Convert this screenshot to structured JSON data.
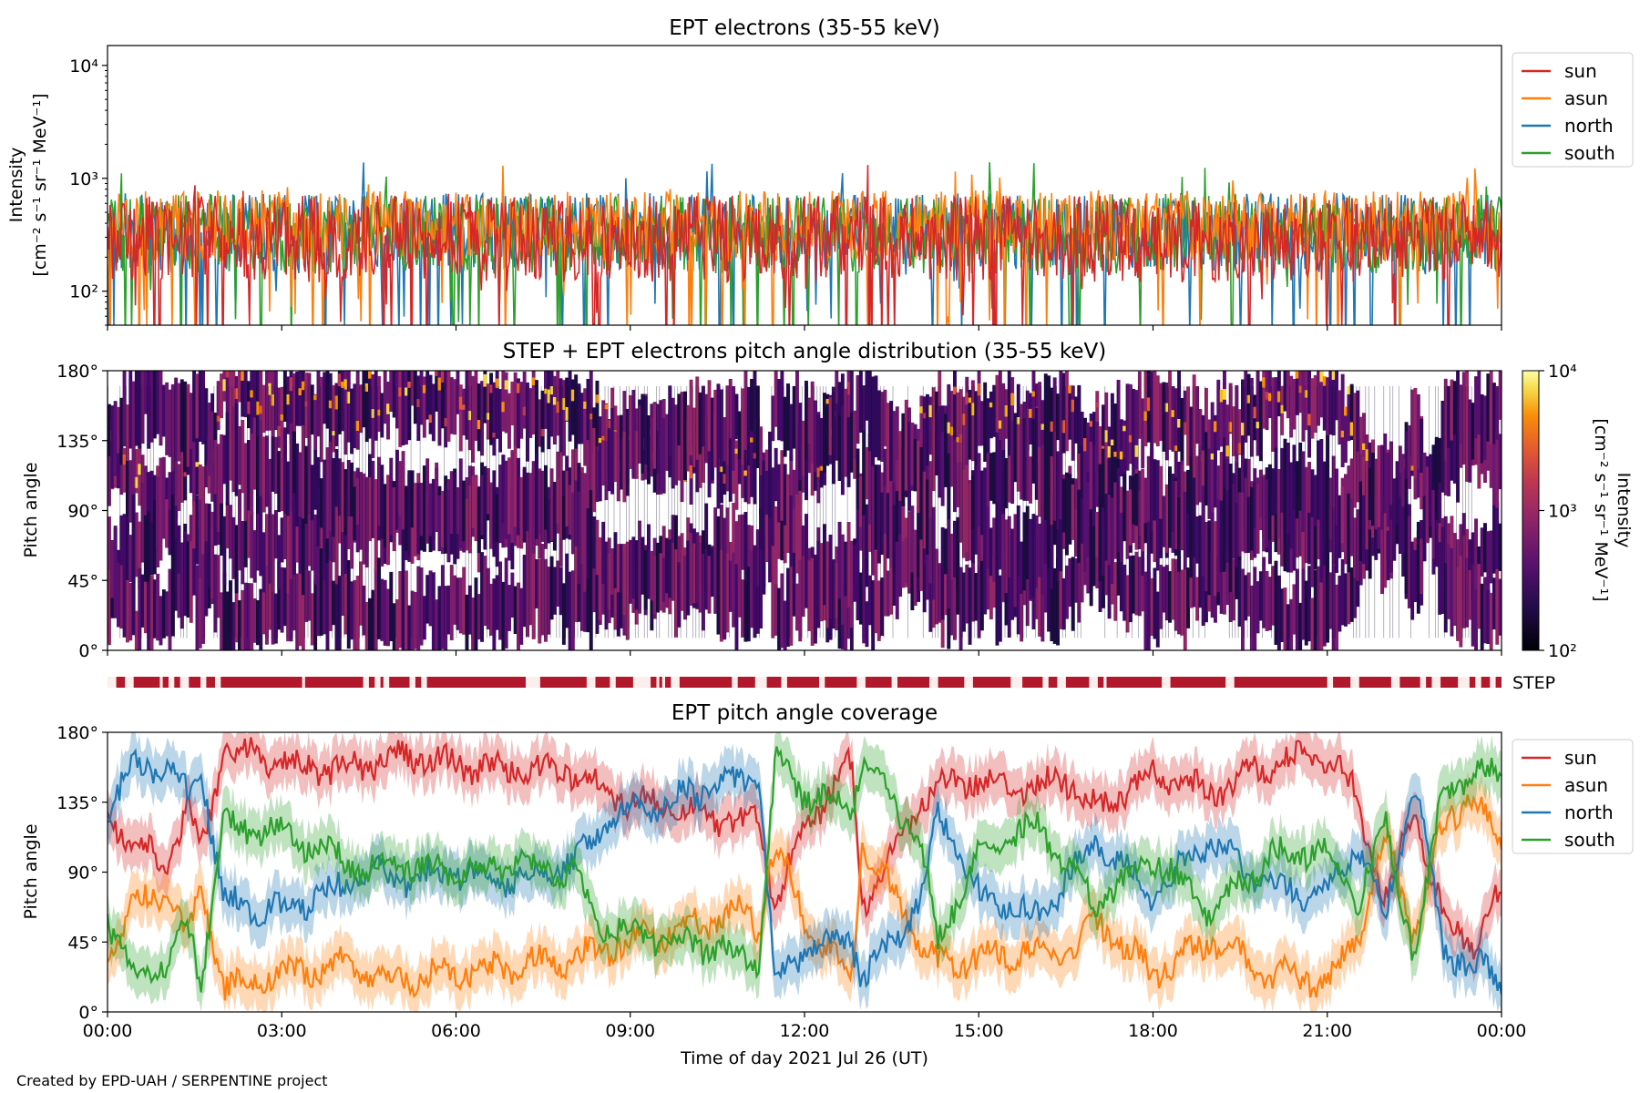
{
  "footer": "Created by EPD-UAH / SERPENTINE project",
  "colors": {
    "sun": "#d62728",
    "asun": "#ff7f0e",
    "north": "#1f77b4",
    "south": "#2ca02c",
    "step": "#b2182b"
  },
  "chart_data": [
    {
      "type": "line",
      "title": "EPT electrons (35-55 keV)",
      "ylabel": "Intensity",
      "yunit": "[cm⁻² s⁻¹ sr⁻¹ MeV⁻¹]",
      "yscale": "log",
      "ylim": [
        50,
        15000
      ],
      "yticks": [
        {
          "value": 100,
          "label": "10²"
        },
        {
          "value": 1000,
          "label": "10³"
        },
        {
          "value": 10000,
          "label": "10⁴"
        }
      ],
      "xlim": [
        0,
        24
      ],
      "legend": "right-outside-top",
      "series": [
        {
          "name": "sun",
          "level": 290,
          "spread": 0.55
        },
        {
          "name": "asun",
          "level": 380,
          "spread": 0.45
        },
        {
          "name": "north",
          "level": 330,
          "spread": 0.5
        },
        {
          "name": "south",
          "level": 320,
          "spread": 0.5
        }
      ]
    },
    {
      "type": "heatmap",
      "title": "STEP + EPT electrons pitch angle distribution (35-55 keV)",
      "ylabel": "Pitch angle",
      "ylim": [
        0,
        180
      ],
      "yticks": [
        "0°",
        "45°",
        "90°",
        "135°",
        "180°"
      ],
      "colorbar": {
        "label": "Intensity",
        "unit": "[cm⁻² s⁻¹ sr⁻¹ MeV⁻¹]",
        "scale": "log",
        "range": [
          100,
          10000
        ],
        "ticks": [
          "10²",
          "10³",
          "10⁴"
        ],
        "colormap": "inferno"
      }
    },
    {
      "type": "bar",
      "label": "STEP",
      "coverage_segments_hours": [
        [
          0.15,
          0.3
        ],
        [
          0.45,
          0.9
        ],
        [
          0.95,
          1.05
        ],
        [
          1.15,
          1.25
        ],
        [
          1.4,
          1.6
        ],
        [
          1.7,
          1.85
        ],
        [
          1.95,
          3.35
        ],
        [
          3.4,
          4.4
        ],
        [
          4.5,
          4.6
        ],
        [
          4.7,
          4.75
        ],
        [
          4.85,
          5.2
        ],
        [
          5.3,
          5.4
        ],
        [
          5.5,
          7.2
        ],
        [
          7.45,
          8.25
        ],
        [
          8.4,
          8.65
        ],
        [
          8.75,
          9.05
        ],
        [
          9.35,
          9.45
        ],
        [
          9.5,
          9.55
        ],
        [
          9.6,
          9.7
        ],
        [
          9.85,
          10.75
        ],
        [
          10.85,
          11.15
        ],
        [
          11.35,
          11.6
        ],
        [
          11.7,
          12.25
        ],
        [
          12.35,
          12.9
        ],
        [
          13.05,
          13.5
        ],
        [
          13.6,
          14.15
        ],
        [
          14.3,
          14.75
        ],
        [
          14.9,
          15.55
        ],
        [
          15.75,
          16.1
        ],
        [
          16.2,
          16.35
        ],
        [
          16.5,
          16.9
        ],
        [
          17.05,
          17.15
        ],
        [
          17.2,
          18.15
        ],
        [
          18.3,
          19.25
        ],
        [
          19.4,
          21.0
        ],
        [
          21.1,
          21.4
        ],
        [
          21.55,
          22.1
        ],
        [
          22.25,
          22.6
        ],
        [
          22.7,
          22.8
        ],
        [
          22.95,
          23.25
        ],
        [
          23.45,
          23.55
        ],
        [
          23.65,
          23.8
        ],
        [
          23.9,
          24.0
        ]
      ]
    },
    {
      "type": "line",
      "title": "EPT pitch angle coverage",
      "ylabel": "Pitch angle",
      "xlabel": "Time of day 2021 Jul 26 (UT)",
      "ylim": [
        0,
        180
      ],
      "yticks": [
        "0°",
        "45°",
        "90°",
        "135°",
        "180°"
      ],
      "xlim": [
        0,
        24
      ],
      "xticks": [
        "00:00",
        "03:00",
        "06:00",
        "09:00",
        "12:00",
        "15:00",
        "18:00",
        "21:00",
        "00:00"
      ],
      "legend": "right-outside-top",
      "series": [
        {
          "name": "sun",
          "x": [
            0,
            0.5,
            1,
            1.4,
            1.6,
            2,
            3,
            4,
            4.5,
            5,
            6,
            7,
            8,
            8.5,
            9,
            10,
            11,
            11.2,
            11.5,
            12,
            12.8,
            13,
            14,
            14.3,
            15,
            16,
            16.5,
            17,
            18,
            19,
            20,
            21,
            21.5,
            22,
            22.5,
            23,
            23.5,
            24
          ],
          "y": [
            125,
            110,
            95,
            130,
            100,
            170,
            160,
            155,
            160,
            165,
            160,
            155,
            155,
            145,
            135,
            130,
            120,
            130,
            70,
            120,
            160,
            70,
            135,
            145,
            150,
            145,
            150,
            130,
            155,
            140,
            160,
            165,
            140,
            70,
            130,
            60,
            45,
            75
          ]
        },
        {
          "name": "asun",
          "x": [
            0,
            0.5,
            1,
            1.4,
            1.6,
            2,
            3,
            4,
            4.5,
            5,
            6,
            7,
            8,
            8.5,
            9,
            10,
            11,
            11.2,
            11.5,
            12,
            12.8,
            13,
            14,
            14.3,
            15,
            16,
            16.5,
            17,
            18,
            19,
            20,
            21,
            21.5,
            22,
            22.5,
            23,
            23.5,
            24
          ],
          "y": [
            40,
            70,
            80,
            45,
            80,
            15,
            25,
            30,
            25,
            20,
            25,
            30,
            35,
            40,
            45,
            55,
            65,
            50,
            110,
            60,
            20,
            110,
            45,
            30,
            35,
            40,
            35,
            60,
            25,
            45,
            25,
            20,
            45,
            110,
            50,
            120,
            140,
            110
          ]
        },
        {
          "name": "north",
          "x": [
            0,
            0.5,
            1,
            1.4,
            1.6,
            2,
            3,
            4,
            4.5,
            5,
            6,
            7,
            8,
            8.5,
            9,
            10,
            11,
            11.2,
            11.5,
            12,
            12.8,
            13,
            14,
            14.3,
            15,
            16,
            16.5,
            17,
            18,
            19,
            20,
            21,
            21.5,
            22,
            22.5,
            23,
            23.5,
            24
          ],
          "y": [
            130,
            160,
            155,
            140,
            160,
            70,
            65,
            80,
            90,
            85,
            90,
            85,
            95,
            120,
            130,
            140,
            150,
            155,
            20,
            40,
            50,
            20,
            70,
            130,
            75,
            60,
            85,
            110,
            75,
            110,
            80,
            75,
            110,
            60,
            150,
            40,
            30,
            20
          ]
        },
        {
          "name": "south",
          "x": [
            0,
            0.5,
            1,
            1.4,
            1.6,
            2,
            3,
            4,
            4.5,
            5,
            6,
            7,
            8,
            8.5,
            9,
            10,
            11,
            11.2,
            11.5,
            12,
            12.8,
            13,
            14,
            14.3,
            15,
            16,
            16.5,
            17,
            18,
            19,
            20,
            21,
            21.5,
            22,
            22.5,
            23,
            23.5,
            24
          ],
          "y": [
            60,
            20,
            30,
            55,
            20,
            120,
            115,
            100,
            90,
            95,
            90,
            95,
            90,
            55,
            50,
            45,
            35,
            30,
            160,
            140,
            130,
            160,
            110,
            45,
            105,
            120,
            95,
            70,
            100,
            65,
            100,
            105,
            70,
            120,
            35,
            145,
            150,
            160
          ]
        }
      ]
    }
  ]
}
